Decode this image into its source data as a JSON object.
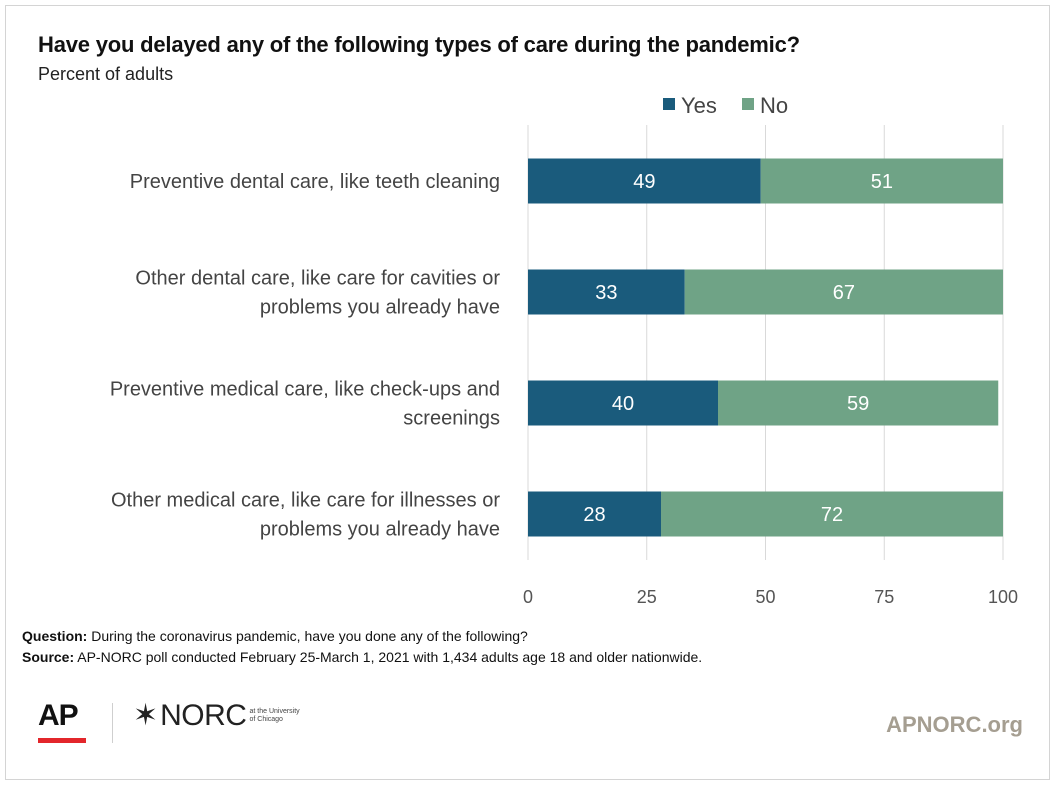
{
  "title": "Have you delayed any of the following types of care during the pandemic?",
  "subtitle": "Percent of adults",
  "chart_data": {
    "type": "bar",
    "orientation": "horizontal",
    "stacked": true,
    "categories": [
      [
        "Preventive dental care, like teeth cleaning"
      ],
      [
        "Other dental care, like care for cavities or",
        "problems you already have"
      ],
      [
        "Preventive medical care, like check-ups and",
        "screenings"
      ],
      [
        "Other medical care, like care for illnesses or",
        "problems you already have"
      ]
    ],
    "series": [
      {
        "name": "Yes",
        "color": "#1a5b7c",
        "values": [
          49,
          33,
          40,
          28
        ]
      },
      {
        "name": "No",
        "color": "#6fa386",
        "values": [
          51,
          67,
          59,
          72
        ]
      }
    ],
    "xlim": [
      0,
      100
    ],
    "xticks": [
      0,
      25,
      50,
      75,
      100
    ],
    "grid": true,
    "legend_position": "top"
  },
  "notes": {
    "question_label": "Question:",
    "question_text": "During the coronavirus pandemic, have you done any of the following?",
    "source_label": "Source:",
    "source_text": "AP-NORC poll conducted February 25-March 1, 2021 with 1,434 adults age 18 and older nationwide."
  },
  "branding": {
    "ap_logo": "AP",
    "norc_logo": "NORC",
    "norc_affiliation": "at the University of Chicago",
    "site": "APNORC.org",
    "ap_red": "#e3262b",
    "site_color": "#a59e91"
  }
}
